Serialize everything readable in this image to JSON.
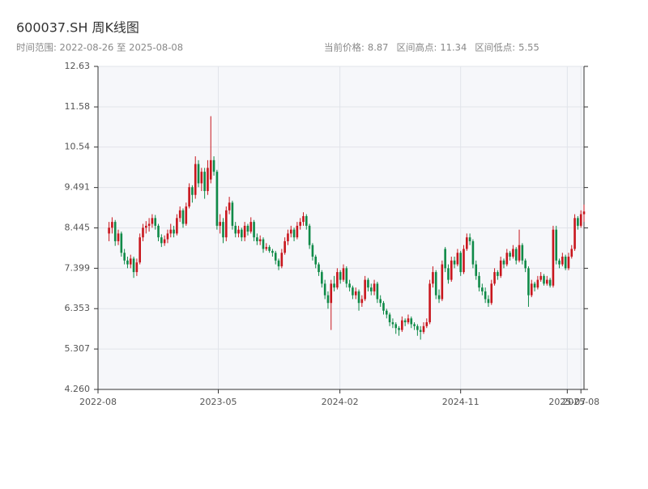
{
  "chart_data": {
    "type": "candlestick",
    "title": "600037.SH 周K线图",
    "subtitle": "时间范围: 2022-08-26 至 2025-08-08",
    "stats": [
      {
        "label": "当前价格:",
        "value": 8.87
      },
      {
        "label": "区间高点:",
        "value": 11.34
      },
      {
        "label": "区间低点:",
        "value": 5.55
      }
    ],
    "up_color": "#c8161d",
    "down_color": "#0f8a48",
    "grid": true,
    "ylim": [
      4.26,
      12.63
    ],
    "yticks": [
      {
        "value": 4.26,
        "label": "4.260"
      },
      5.307,
      6.353,
      7.399,
      8.445,
      9.491,
      10.54,
      11.58,
      12.63
    ],
    "xlim": [
      "2022-08",
      "2025-08-08"
    ],
    "xticks": [
      "2022-08",
      "2023-05",
      "2024-02",
      "2024-11",
      "2025-07",
      "2025-08"
    ],
    "x": [
      "2022-08-26",
      "2022-09-02",
      "2022-09-09",
      "2022-09-16",
      "2022-09-23",
      "2022-09-30",
      "2022-10-07",
      "2022-10-14",
      "2022-10-21",
      "2022-10-28",
      "2022-11-04",
      "2022-11-11",
      "2022-11-18",
      "2022-11-25",
      "2022-12-02",
      "2022-12-09",
      "2022-12-16",
      "2022-12-23",
      "2022-12-30",
      "2023-01-06",
      "2023-01-13",
      "2023-01-20",
      "2023-01-27",
      "2023-02-03",
      "2023-02-10",
      "2023-02-17",
      "2023-02-24",
      "2023-03-03",
      "2023-03-10",
      "2023-03-17",
      "2023-03-24",
      "2023-03-31",
      "2023-04-07",
      "2023-04-14",
      "2023-04-21",
      "2023-04-28",
      "2023-05-05",
      "2023-05-12",
      "2023-05-19",
      "2023-05-26",
      "2023-06-02",
      "2023-06-09",
      "2023-06-16",
      "2023-06-23",
      "2023-06-30",
      "2023-07-07",
      "2023-07-14",
      "2023-07-21",
      "2023-07-28",
      "2023-08-04",
      "2023-08-11",
      "2023-08-18",
      "2023-08-25",
      "2023-09-01",
      "2023-09-08",
      "2023-09-15",
      "2023-09-22",
      "2023-09-29",
      "2023-10-06",
      "2023-10-13",
      "2023-10-20",
      "2023-10-27",
      "2023-11-03",
      "2023-11-10",
      "2023-11-17",
      "2023-11-24",
      "2023-12-01",
      "2023-12-08",
      "2023-12-15",
      "2023-12-22",
      "2023-12-29",
      "2024-01-05",
      "2024-01-12",
      "2024-01-19",
      "2024-01-26",
      "2024-02-02",
      "2024-02-09",
      "2024-02-16",
      "2024-02-23",
      "2024-03-01",
      "2024-03-08",
      "2024-03-15",
      "2024-03-22",
      "2024-03-29",
      "2024-04-05",
      "2024-04-12",
      "2024-04-19",
      "2024-04-26",
      "2024-05-03",
      "2024-05-10",
      "2024-05-17",
      "2024-05-24",
      "2024-05-31",
      "2024-06-07",
      "2024-06-14",
      "2024-06-21",
      "2024-06-28",
      "2024-07-05",
      "2024-07-12",
      "2024-07-19",
      "2024-07-26",
      "2024-08-02",
      "2024-08-09",
      "2024-08-16",
      "2024-08-23",
      "2024-08-30",
      "2024-09-06",
      "2024-09-13",
      "2024-09-20",
      "2024-09-27",
      "2024-10-04",
      "2024-10-11",
      "2024-10-18",
      "2024-10-25",
      "2024-11-01",
      "2024-11-08",
      "2024-11-15",
      "2024-11-22",
      "2024-11-29",
      "2024-12-06",
      "2024-12-13",
      "2024-12-20",
      "2024-12-27",
      "2025-01-03",
      "2025-01-10",
      "2025-01-17",
      "2025-01-24",
      "2025-01-31",
      "2025-02-07",
      "2025-02-14",
      "2025-02-21",
      "2025-02-28",
      "2025-03-07",
      "2025-03-14",
      "2025-03-21",
      "2025-03-28",
      "2025-04-04",
      "2025-04-11",
      "2025-04-18",
      "2025-04-25",
      "2025-05-02",
      "2025-05-09",
      "2025-05-16",
      "2025-05-23",
      "2025-05-30",
      "2025-06-06",
      "2025-06-13",
      "2025-06-20",
      "2025-06-27",
      "2025-07-04",
      "2025-07-11",
      "2025-07-18",
      "2025-07-25",
      "2025-08-01",
      "2025-08-08"
    ],
    "ohlc": [
      [
        8.3,
        8.6,
        8.1,
        8.45
      ],
      [
        8.45,
        8.72,
        8.3,
        8.6
      ],
      [
        8.6,
        8.65,
        7.98,
        8.1
      ],
      [
        8.1,
        8.4,
        8.0,
        8.3
      ],
      [
        8.3,
        8.35,
        7.7,
        7.8
      ],
      [
        7.8,
        7.9,
        7.5,
        7.6
      ],
      [
        7.6,
        7.7,
        7.4,
        7.5
      ],
      [
        7.5,
        7.75,
        7.4,
        7.65
      ],
      [
        7.65,
        7.7,
        7.15,
        7.3
      ],
      [
        7.3,
        7.65,
        7.2,
        7.55
      ],
      [
        7.55,
        8.3,
        7.5,
        8.2
      ],
      [
        8.2,
        8.55,
        8.1,
        8.45
      ],
      [
        8.45,
        8.62,
        8.3,
        8.5
      ],
      [
        8.5,
        8.7,
        8.35,
        8.55
      ],
      [
        8.55,
        8.8,
        8.45,
        8.7
      ],
      [
        8.7,
        8.78,
        8.4,
        8.5
      ],
      [
        8.5,
        8.55,
        8.1,
        8.2
      ],
      [
        8.2,
        8.28,
        7.95,
        8.05
      ],
      [
        8.05,
        8.25,
        7.98,
        8.15
      ],
      [
        8.15,
        8.4,
        8.05,
        8.3
      ],
      [
        8.3,
        8.55,
        8.2,
        8.4
      ],
      [
        8.4,
        8.5,
        8.2,
        8.3
      ],
      [
        8.3,
        8.8,
        8.25,
        8.7
      ],
      [
        8.7,
        9.0,
        8.6,
        8.9
      ],
      [
        8.9,
        8.95,
        8.45,
        8.55
      ],
      [
        8.55,
        9.1,
        8.5,
        9.0
      ],
      [
        9.0,
        9.6,
        8.95,
        9.5
      ],
      [
        9.5,
        9.55,
        9.1,
        9.3
      ],
      [
        9.3,
        10.3,
        9.2,
        10.1
      ],
      [
        10.1,
        10.2,
        9.5,
        9.6
      ],
      [
        9.6,
        10.0,
        9.4,
        9.9
      ],
      [
        9.9,
        10.0,
        9.2,
        9.4
      ],
      [
        9.4,
        10.2,
        9.3,
        10.0
      ],
      [
        9.7,
        11.34,
        9.6,
        10.2
      ],
      [
        10.2,
        10.3,
        9.8,
        9.9
      ],
      [
        9.9,
        9.95,
        8.4,
        8.5
      ],
      [
        8.5,
        8.8,
        8.3,
        8.6
      ],
      [
        8.6,
        8.7,
        8.05,
        8.2
      ],
      [
        8.2,
        9.0,
        8.1,
        8.9
      ],
      [
        8.9,
        9.25,
        8.8,
        9.1
      ],
      [
        9.1,
        9.15,
        8.4,
        8.5
      ],
      [
        8.5,
        8.6,
        8.2,
        8.3
      ],
      [
        8.3,
        8.5,
        8.2,
        8.4
      ],
      [
        8.4,
        8.45,
        8.1,
        8.2
      ],
      [
        8.2,
        8.6,
        8.1,
        8.5
      ],
      [
        8.5,
        8.55,
        8.25,
        8.35
      ],
      [
        8.35,
        8.72,
        8.3,
        8.6
      ],
      [
        8.6,
        8.65,
        8.1,
        8.2
      ],
      [
        8.2,
        8.3,
        8.0,
        8.1
      ],
      [
        8.1,
        8.25,
        8.0,
        8.15
      ],
      [
        8.15,
        8.2,
        7.8,
        7.9
      ],
      [
        7.9,
        8.05,
        7.85,
        7.95
      ],
      [
        7.95,
        8.0,
        7.8,
        7.85
      ],
      [
        7.85,
        7.9,
        7.7,
        7.8
      ],
      [
        7.8,
        7.85,
        7.5,
        7.6
      ],
      [
        7.6,
        7.65,
        7.35,
        7.45
      ],
      [
        7.45,
        7.9,
        7.4,
        7.8
      ],
      [
        7.8,
        8.2,
        7.75,
        8.1
      ],
      [
        8.1,
        8.4,
        8.0,
        8.3
      ],
      [
        8.3,
        8.5,
        8.2,
        8.4
      ],
      [
        8.4,
        8.45,
        8.1,
        8.2
      ],
      [
        8.2,
        8.6,
        8.15,
        8.5
      ],
      [
        8.5,
        8.7,
        8.4,
        8.6
      ],
      [
        8.6,
        8.85,
        8.5,
        8.75
      ],
      [
        8.75,
        8.8,
        8.4,
        8.5
      ],
      [
        8.5,
        8.55,
        7.9,
        8.0
      ],
      [
        8.0,
        8.05,
        7.6,
        7.7
      ],
      [
        7.7,
        7.75,
        7.4,
        7.5
      ],
      [
        7.5,
        7.55,
        7.2,
        7.3
      ],
      [
        7.3,
        7.35,
        6.9,
        7.0
      ],
      [
        7.0,
        7.1,
        6.6,
        6.7
      ],
      [
        6.7,
        6.8,
        6.35,
        6.5
      ],
      [
        6.5,
        7.1,
        5.8,
        7.0
      ],
      [
        7.0,
        7.2,
        6.8,
        6.9
      ],
      [
        6.9,
        7.4,
        6.85,
        7.3
      ],
      [
        7.3,
        7.35,
        7.0,
        7.1
      ],
      [
        7.1,
        7.5,
        7.05,
        7.4
      ],
      [
        7.4,
        7.45,
        6.9,
        7.0
      ],
      [
        7.0,
        7.1,
        6.8,
        6.9
      ],
      [
        6.9,
        6.95,
        6.6,
        6.7
      ],
      [
        6.7,
        6.9,
        6.6,
        6.8
      ],
      [
        6.8,
        6.85,
        6.3,
        6.5
      ],
      [
        6.5,
        6.7,
        6.4,
        6.6
      ],
      [
        6.6,
        7.2,
        6.55,
        7.1
      ],
      [
        7.1,
        7.15,
        6.8,
        6.9
      ],
      [
        6.9,
        7.0,
        6.7,
        6.8
      ],
      [
        6.8,
        7.1,
        6.7,
        7.0
      ],
      [
        7.0,
        7.05,
        6.5,
        6.6
      ],
      [
        6.6,
        6.7,
        6.4,
        6.5
      ],
      [
        6.5,
        6.55,
        6.2,
        6.3
      ],
      [
        6.3,
        6.35,
        6.1,
        6.2
      ],
      [
        6.2,
        6.25,
        5.9,
        6.0
      ],
      [
        6.0,
        6.1,
        5.85,
        5.95
      ],
      [
        5.95,
        6.0,
        5.7,
        5.85
      ],
      [
        5.85,
        5.9,
        5.65,
        5.8
      ],
      [
        5.8,
        6.15,
        5.75,
        6.05
      ],
      [
        6.05,
        6.1,
        5.9,
        6.0
      ],
      [
        6.0,
        6.2,
        5.95,
        6.1
      ],
      [
        6.1,
        6.15,
        5.85,
        5.95
      ],
      [
        5.95,
        6.0,
        5.8,
        5.9
      ],
      [
        5.9,
        5.95,
        5.65,
        5.8
      ],
      [
        5.8,
        5.9,
        5.55,
        5.75
      ],
      [
        5.75,
        6.0,
        5.7,
        5.9
      ],
      [
        5.9,
        6.1,
        5.85,
        6.0
      ],
      [
        6.0,
        7.1,
        5.95,
        7.0
      ],
      [
        7.0,
        7.45,
        6.9,
        7.3
      ],
      [
        7.3,
        7.35,
        6.6,
        6.7
      ],
      [
        6.7,
        6.85,
        6.5,
        6.6
      ],
      [
        6.6,
        7.6,
        6.55,
        7.5
      ],
      [
        7.9,
        7.95,
        7.3,
        7.4
      ],
      [
        7.4,
        7.5,
        7.0,
        7.1
      ],
      [
        7.1,
        7.7,
        7.05,
        7.6
      ],
      [
        7.6,
        7.7,
        7.4,
        7.5
      ],
      [
        7.5,
        7.9,
        7.45,
        7.8
      ],
      [
        7.8,
        7.85,
        7.2,
        7.3
      ],
      [
        7.3,
        8.0,
        7.25,
        7.9
      ],
      [
        7.9,
        8.3,
        7.85,
        8.2
      ],
      [
        8.2,
        8.3,
        8.0,
        8.1
      ],
      [
        8.1,
        8.15,
        7.4,
        7.5
      ],
      [
        7.5,
        7.6,
        7.1,
        7.2
      ],
      [
        7.2,
        7.3,
        6.8,
        6.9
      ],
      [
        6.9,
        7.0,
        6.7,
        6.8
      ],
      [
        6.8,
        6.9,
        6.5,
        6.6
      ],
      [
        6.6,
        6.7,
        6.4,
        6.5
      ],
      [
        6.5,
        7.1,
        6.45,
        7.0
      ],
      [
        7.0,
        7.4,
        6.95,
        7.3
      ],
      [
        7.3,
        7.35,
        7.1,
        7.2
      ],
      [
        7.2,
        7.7,
        7.15,
        7.6
      ],
      [
        7.6,
        7.65,
        7.4,
        7.5
      ],
      [
        7.5,
        7.9,
        7.45,
        7.8
      ],
      [
        7.8,
        7.85,
        7.6,
        7.7
      ],
      [
        7.7,
        8.0,
        7.65,
        7.9
      ],
      [
        7.9,
        7.95,
        7.5,
        7.6
      ],
      [
        7.6,
        8.4,
        7.55,
        8.0
      ],
      [
        8.0,
        8.05,
        7.5,
        7.6
      ],
      [
        7.6,
        7.65,
        7.3,
        7.4
      ],
      [
        7.4,
        7.45,
        6.4,
        6.7
      ],
      [
        6.7,
        7.1,
        6.65,
        7.0
      ],
      [
        7.0,
        7.05,
        6.8,
        6.9
      ],
      [
        6.9,
        7.2,
        6.85,
        7.1
      ],
      [
        7.1,
        7.3,
        7.05,
        7.2
      ],
      [
        7.2,
        7.25,
        6.95,
        7.0
      ],
      [
        7.0,
        7.2,
        6.95,
        7.1
      ],
      [
        7.1,
        7.15,
        6.9,
        6.95
      ],
      [
        6.95,
        8.5,
        6.9,
        8.4
      ],
      [
        8.4,
        8.5,
        7.5,
        7.6
      ],
      [
        7.6,
        7.65,
        7.4,
        7.5
      ],
      [
        7.5,
        7.8,
        7.45,
        7.7
      ],
      [
        7.7,
        7.75,
        7.35,
        7.4
      ],
      [
        7.4,
        7.8,
        7.35,
        7.7
      ],
      [
        7.7,
        8.0,
        7.65,
        7.9
      ],
      [
        7.9,
        8.8,
        7.85,
        8.7
      ],
      [
        8.7,
        8.75,
        8.4,
        8.5
      ],
      [
        8.5,
        8.9,
        8.45,
        8.8
      ],
      [
        8.8,
        9.05,
        8.6,
        8.87
      ]
    ]
  }
}
